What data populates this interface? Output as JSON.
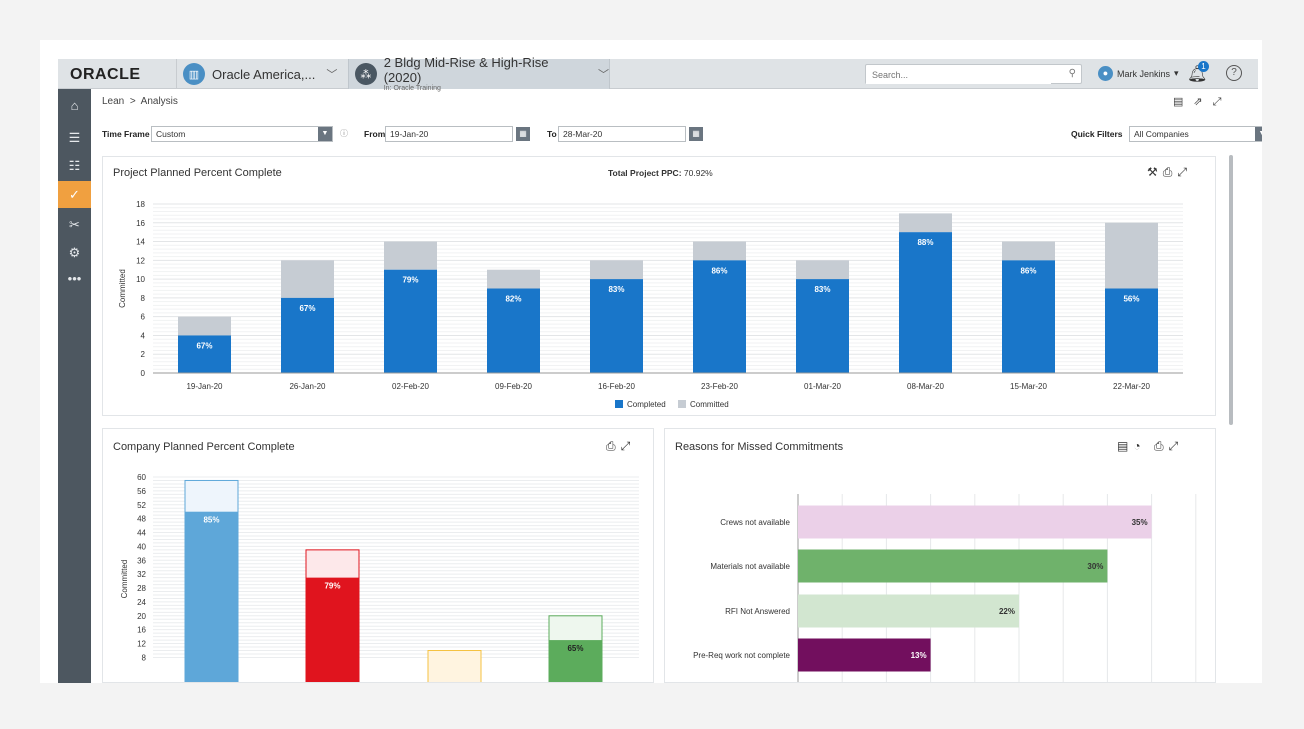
{
  "header": {
    "logo": "ORACLE",
    "company": "Oracle America,...",
    "project": "2 Bldg Mid-Rise & High-Rise (2020)",
    "project_sub": "In: Oracle Training",
    "search_placeholder": "Search...",
    "user_name": "Mark Jenkins",
    "notification_count": "1"
  },
  "sidebar": {
    "items": [
      {
        "icon": "home-icon"
      },
      {
        "icon": "list-icon"
      },
      {
        "icon": "schedule-icon"
      },
      {
        "icon": "clipboard-check-icon",
        "active": true
      },
      {
        "icon": "tools-icon"
      },
      {
        "icon": "gear-icon"
      },
      {
        "icon": "more-icon",
        "label": "•••"
      }
    ]
  },
  "breadcrumb": {
    "root": "Lean",
    "separator": ">",
    "current": "Analysis"
  },
  "filters": {
    "time_frame_label": "Time Frame",
    "time_frame_value": "Custom",
    "from_label": "From",
    "from_value": "19-Jan-20",
    "to_label": "To",
    "to_value": "28-Mar-20",
    "quick_filters_label": "Quick Filters",
    "quick_filters_value": "All Companies"
  },
  "panels": {
    "project": {
      "title": "Project Planned Percent Complete",
      "total_label": "Total Project PPC:",
      "total_value": "70.92%"
    },
    "company": {
      "title": "Company Planned Percent Complete"
    },
    "reasons": {
      "title": "Reasons for Missed Commitments"
    }
  },
  "colors": {
    "completed": "#1976c9",
    "committed": "#c6ccd3"
  },
  "chart_data": [
    {
      "type": "bar",
      "title": "Project Planned Percent Complete",
      "ylabel": "Committed",
      "ylim": [
        0,
        18
      ],
      "yticks": [
        0,
        2,
        4,
        6,
        8,
        10,
        12,
        14,
        16,
        18
      ],
      "categories": [
        "19-Jan-20",
        "26-Jan-20",
        "02-Feb-20",
        "09-Feb-20",
        "16-Feb-20",
        "23-Feb-20",
        "01-Mar-20",
        "08-Mar-20",
        "15-Mar-20",
        "22-Mar-20"
      ],
      "series": [
        {
          "name": "Completed",
          "values": [
            4,
            8,
            11,
            9,
            10,
            12,
            10,
            15,
            12,
            9
          ]
        },
        {
          "name": "Committed",
          "values": [
            6,
            12,
            14,
            11,
            12,
            14,
            12,
            17,
            14,
            16
          ]
        }
      ],
      "labels": [
        "67%",
        "67%",
        "79%",
        "82%",
        "83%",
        "86%",
        "83%",
        "88%",
        "86%",
        "56%"
      ],
      "legend": [
        "Completed",
        "Committed"
      ]
    },
    {
      "type": "bar",
      "title": "Company Planned Percent Complete",
      "ylabel": "Committed",
      "ylim": [
        6,
        60
      ],
      "yticks": [
        8,
        12,
        16,
        20,
        24,
        28,
        32,
        36,
        40,
        44,
        48,
        52,
        56,
        60
      ],
      "bars": [
        {
          "completed": 50,
          "committed": 59,
          "label": "85%",
          "color": "#5ea7d9",
          "light": "#eef5fc"
        },
        {
          "completed": 31,
          "committed": 39,
          "label": "79%",
          "color": "#e0141e",
          "light": "#fde8ea"
        },
        {
          "completed": 0,
          "committed": 10,
          "label": "",
          "color": "#f5c242",
          "light": "#fff4e0"
        },
        {
          "completed": 13,
          "committed": 20,
          "label": "65%",
          "color": "#5cac5c",
          "light": "#eef7ee"
        }
      ]
    },
    {
      "type": "bar",
      "orientation": "horizontal",
      "title": "Reasons for Missed Commitments",
      "categories": [
        "Crews not available",
        "Materials not available",
        "RFI Not Answered",
        "Pre-Req work not complete"
      ],
      "values": [
        8,
        7,
        5,
        3
      ],
      "labels": [
        "35%",
        "30%",
        "22%",
        "13%"
      ],
      "colors": [
        "#ebd0e8",
        "#6fb26b",
        "#d2e6d0",
        "#720f5e"
      ],
      "xlim": [
        0,
        9
      ]
    }
  ]
}
